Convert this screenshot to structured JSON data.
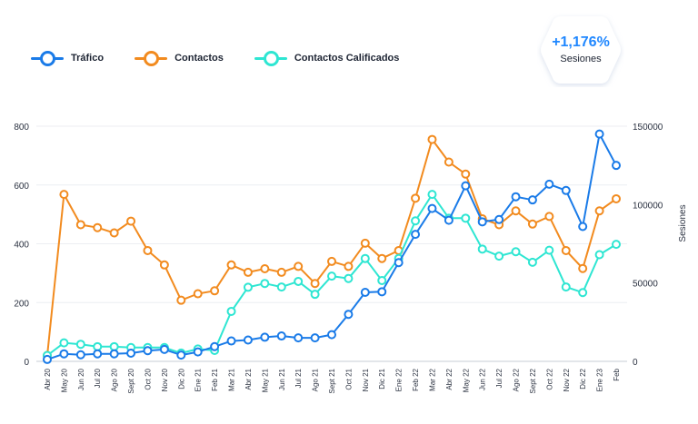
{
  "badge": {
    "value": "+1,176%",
    "label": "Sesiones"
  },
  "chart_data": {
    "type": "line",
    "categories": [
      "Abr 20",
      "May 20",
      "Jun 20",
      "Jul 20",
      "Ago 20",
      "Sept 20",
      "Oct 20",
      "Nov 20",
      "Dic 20",
      "Ene 21",
      "Feb 21",
      "Mar 21",
      "Abr 21",
      "May 21",
      "Jun 21",
      "Jul 21",
      "Ago 21",
      "Sept 21",
      "Oct 21",
      "Nov 21",
      "Dic 21",
      "Ene 22",
      "Feb 22",
      "Mar 22",
      "Abr 22",
      "May 22",
      "Jun 22",
      "Jul 22",
      "Ago 22",
      "Sept 22",
      "Oct 22",
      "Nov 22",
      "Dic 22",
      "Ene 23",
      "Feb"
    ],
    "y_left": {
      "ticks": [
        "0",
        "200",
        "400",
        "600",
        "800"
      ],
      "lim": [
        0,
        800
      ]
    },
    "y_right": {
      "ticks": [
        "0",
        "50000",
        "100000",
        "150000"
      ],
      "lim": [
        0,
        150000
      ],
      "label": "Sesiones"
    },
    "grid": true,
    "legend_position": "top-left",
    "series": [
      {
        "name": "Tráfico",
        "color": "#1a7be8",
        "axis": "right",
        "values": [
          1200,
          4800,
          4200,
          4800,
          4800,
          5200,
          6800,
          7600,
          4000,
          6000,
          9400,
          13000,
          13600,
          15400,
          16200,
          15000,
          15000,
          17000,
          30000,
          44000,
          44400,
          63000,
          81000,
          97500,
          90000,
          112000,
          89000,
          90500,
          105000,
          103000,
          113000,
          109000,
          86000,
          145000,
          125000
        ]
      },
      {
        "name": "Contactos",
        "color": "#f28b1f",
        "axis": "left",
        "values": [
          20,
          568,
          465,
          455,
          437,
          477,
          377,
          328,
          208,
          230,
          240,
          328,
          303,
          315,
          303,
          323,
          265,
          340,
          323,
          402,
          350,
          377,
          555,
          755,
          678,
          637,
          485,
          465,
          512,
          467,
          493,
          377,
          316,
          512,
          553
        ]
      },
      {
        "name": "Contactos Calificados",
        "color": "#2ee6d2",
        "axis": "left",
        "values": [
          20,
          63,
          58,
          50,
          50,
          47,
          47,
          47,
          28,
          42,
          37,
          170,
          252,
          265,
          253,
          272,
          228,
          290,
          282,
          350,
          275,
          350,
          478,
          568,
          487,
          487,
          382,
          358,
          373,
          337,
          378,
          253,
          234,
          363,
          398
        ]
      }
    ]
  }
}
